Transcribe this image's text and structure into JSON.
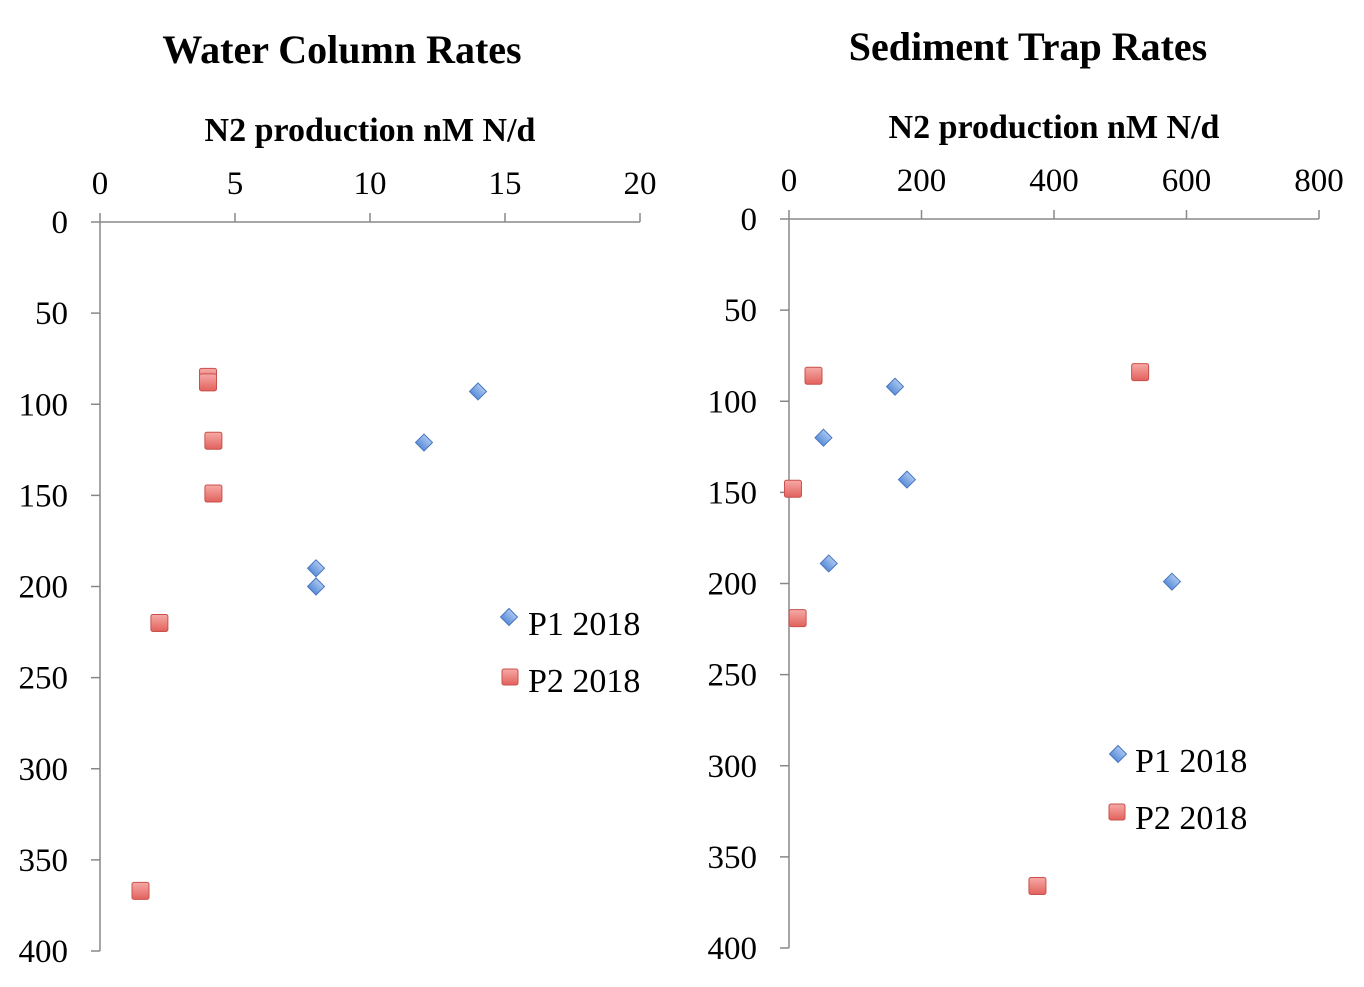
{
  "colors": {
    "p1_fill": "#6f9ee0",
    "p1_stroke": "#4a76c0",
    "p2_fill": "#ec7b77",
    "p2_stroke": "#c9504c",
    "axis": "#888888"
  },
  "chart_data": [
    {
      "type": "scatter",
      "title": "Water Column Rates",
      "xlabel": "N2 production nM N/d",
      "ylabel": "",
      "xlim": [
        0,
        20
      ],
      "ylim": [
        0,
        400
      ],
      "y_inverted": true,
      "x_axis_position": "top",
      "x_ticks": [
        "0",
        "5",
        "10",
        "15",
        "20"
      ],
      "y_ticks": [
        "0",
        "50",
        "100",
        "150",
        "200",
        "250",
        "300",
        "350",
        "400"
      ],
      "legend_position": "middle-right",
      "series": [
        {
          "name": "P1 2018",
          "marker": "diamond",
          "points": [
            {
              "x": 14,
              "y": 93
            },
            {
              "x": 12,
              "y": 121
            },
            {
              "x": 8,
              "y": 190
            },
            {
              "x": 8,
              "y": 200
            }
          ]
        },
        {
          "name": "P2 2018",
          "marker": "square",
          "points": [
            {
              "x": 4,
              "y": 85
            },
            {
              "x": 4,
              "y": 88
            },
            {
              "x": 4.2,
              "y": 120
            },
            {
              "x": 4.2,
              "y": 149
            },
            {
              "x": 2.2,
              "y": 220
            },
            {
              "x": 1.5,
              "y": 367
            }
          ]
        }
      ]
    },
    {
      "type": "scatter",
      "title": "Sediment Trap Rates",
      "xlabel": "N2 production nM N/d",
      "ylabel": "",
      "xlim": [
        0,
        800
      ],
      "ylim": [
        0,
        400
      ],
      "y_inverted": true,
      "x_axis_position": "top",
      "x_ticks": [
        "0",
        "200",
        "400",
        "600",
        "800"
      ],
      "y_ticks": [
        "0",
        "50",
        "100",
        "150",
        "200",
        "250",
        "300",
        "350",
        "400"
      ],
      "legend_position": "lower-right",
      "series": [
        {
          "name": "P1 2018",
          "marker": "diamond",
          "points": [
            {
              "x": 160,
              "y": 92
            },
            {
              "x": 52,
              "y": 120
            },
            {
              "x": 178,
              "y": 143
            },
            {
              "x": 60,
              "y": 189
            },
            {
              "x": 578,
              "y": 199
            }
          ]
        },
        {
          "name": "P2 2018",
          "marker": "square",
          "points": [
            {
              "x": 37,
              "y": 86
            },
            {
              "x": 530,
              "y": 84
            },
            {
              "x": 6,
              "y": 148
            },
            {
              "x": 13,
              "y": 219
            },
            {
              "x": 375,
              "y": 366
            }
          ]
        }
      ]
    }
  ]
}
